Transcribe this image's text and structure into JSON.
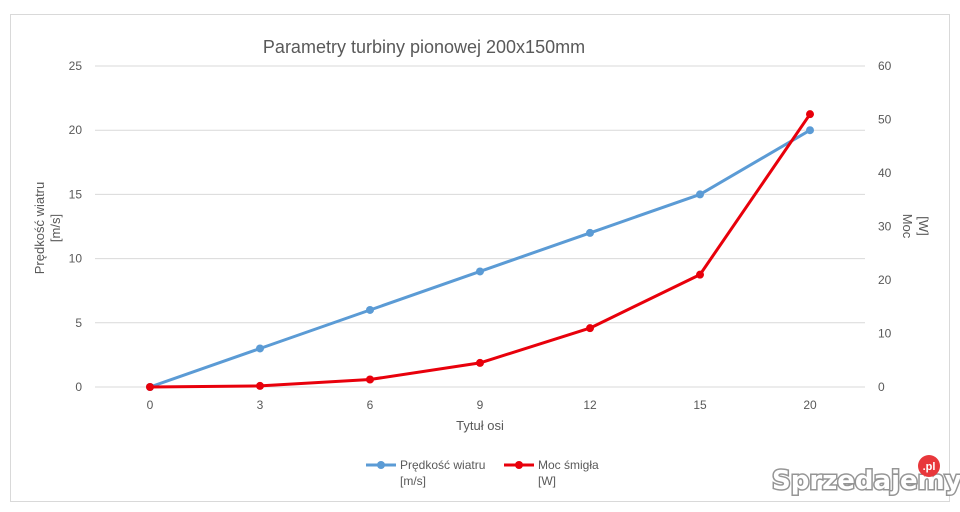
{
  "chart_data": {
    "type": "line",
    "title": "Parametry turbiny pionowej 200x150mm",
    "categories": [
      "0",
      "3",
      "6",
      "9",
      "12",
      "15",
      "20"
    ],
    "xlabel": "Tytuł osi",
    "ylabel_line1": "Prędkość wiatru",
    "ylabel_line2": "[m/s]",
    "y2label_line1": "Moc",
    "y2label_line2": "[W]",
    "ylim": [
      0,
      25
    ],
    "y2lim": [
      0,
      60
    ],
    "yticks": [
      "0",
      "5",
      "10",
      "15",
      "20",
      "25"
    ],
    "y2ticks": [
      "0",
      "10",
      "20",
      "30",
      "40",
      "50",
      "60"
    ],
    "grid": true,
    "legend_position": "bottom",
    "series": [
      {
        "name": "Prędkość wiatru [m/s]",
        "legend_line1": "Prędkość wiatru",
        "legend_line2": "[m/s]",
        "axis": "left",
        "color": "#5B9BD5",
        "values": [
          0,
          3,
          6,
          9,
          12,
          15,
          20
        ]
      },
      {
        "name": "Moc śmigła [W]",
        "legend_line1": "Moc śmigła",
        "legend_line2": "[W]",
        "axis": "right",
        "color": "#E8000B",
        "values": [
          0,
          0.2,
          1.4,
          4.5,
          11,
          21,
          51
        ]
      }
    ]
  },
  "watermark": {
    "text": "Sprzedajemy",
    "badge": ".pl",
    "text_color": "#ffffff",
    "badge_color": "#e8373b"
  }
}
